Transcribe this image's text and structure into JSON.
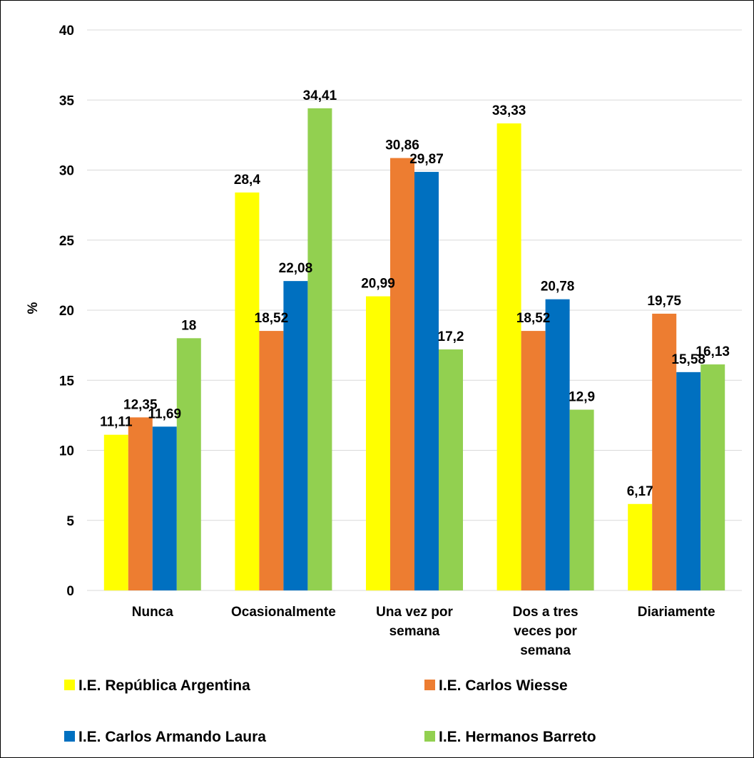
{
  "chart_data": {
    "type": "bar",
    "title": "",
    "xlabel": "",
    "ylabel": "%",
    "ylim": [
      0,
      40
    ],
    "yticks": [
      0,
      5,
      10,
      15,
      20,
      25,
      30,
      35,
      40
    ],
    "grid": true,
    "legend_position": "bottom",
    "categories": [
      [
        "Nunca"
      ],
      [
        "Ocasionalmente"
      ],
      [
        "Una vez por",
        "semana"
      ],
      [
        "Dos a tres",
        "veces por",
        "semana"
      ],
      [
        "Diariamente"
      ]
    ],
    "series": [
      {
        "name": "I.E. República Argentina",
        "color": "#FFFF00",
        "values": [
          11.11,
          28.4,
          20.99,
          33.33,
          6.17
        ],
        "labels": [
          "11,11",
          "28,4",
          "20,99",
          "33,33",
          "6,17"
        ]
      },
      {
        "name": "I.E. Carlos Wiesse",
        "color": "#ED7D31",
        "values": [
          12.35,
          18.52,
          30.86,
          18.52,
          19.75
        ],
        "labels": [
          "12,35",
          "18,52",
          "30,86",
          "18,52",
          "19,75"
        ]
      },
      {
        "name": "I.E. Carlos Armando Laura",
        "color": "#0070C0",
        "values": [
          11.69,
          22.08,
          29.87,
          20.78,
          15.58
        ],
        "labels": [
          "11,69",
          "22,08",
          "29,87",
          "20,78",
          "15,58"
        ]
      },
      {
        "name": "I.E. Hermanos Barreto",
        "color": "#92D050",
        "values": [
          18,
          34.41,
          17.2,
          12.9,
          16.13
        ],
        "labels": [
          "18",
          "34,41",
          "17,2",
          "12,9",
          "16,13"
        ]
      }
    ]
  }
}
